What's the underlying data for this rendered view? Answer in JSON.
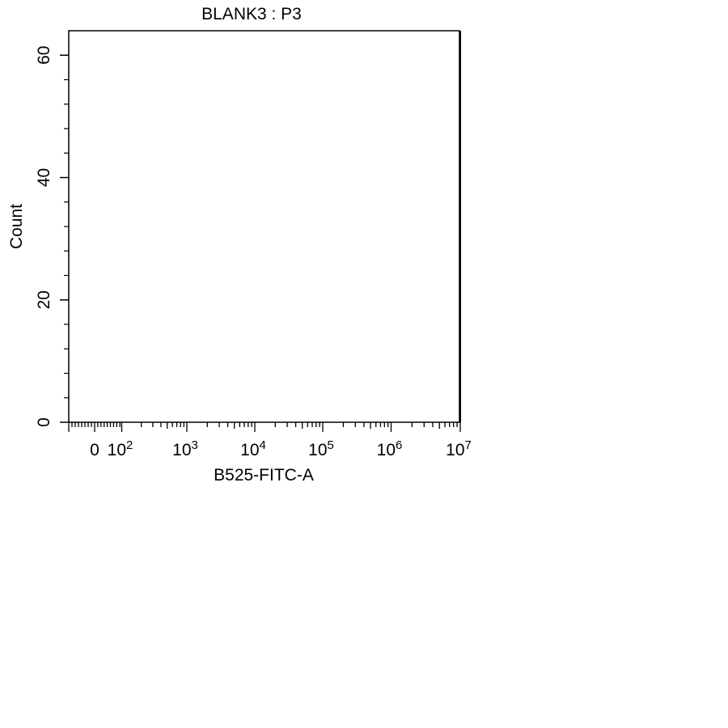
{
  "chart_data": {
    "type": "histogram",
    "title": "BLANK3 : P3",
    "xlabel": "B525-FITC-A",
    "ylabel": "Count",
    "x_scale": "biexponential",
    "x_ticks": [
      {
        "value": "0",
        "base": "0",
        "exp": ""
      },
      {
        "value": "100",
        "base": "10",
        "exp": "2"
      },
      {
        "value": "1000",
        "base": "10",
        "exp": "3"
      },
      {
        "value": "10000",
        "base": "10",
        "exp": "4"
      },
      {
        "value": "100000",
        "base": "10",
        "exp": "5"
      },
      {
        "value": "1000000",
        "base": "10",
        "exp": "6"
      },
      {
        "value": "10000000",
        "base": "10",
        "exp": "7"
      }
    ],
    "y_ticks": [
      0,
      20,
      40,
      60
    ],
    "ylim": [
      0,
      64
    ],
    "series": [],
    "grid": false,
    "legend": "none",
    "colors": {
      "axis": "#000000",
      "background": "#ffffff"
    }
  }
}
